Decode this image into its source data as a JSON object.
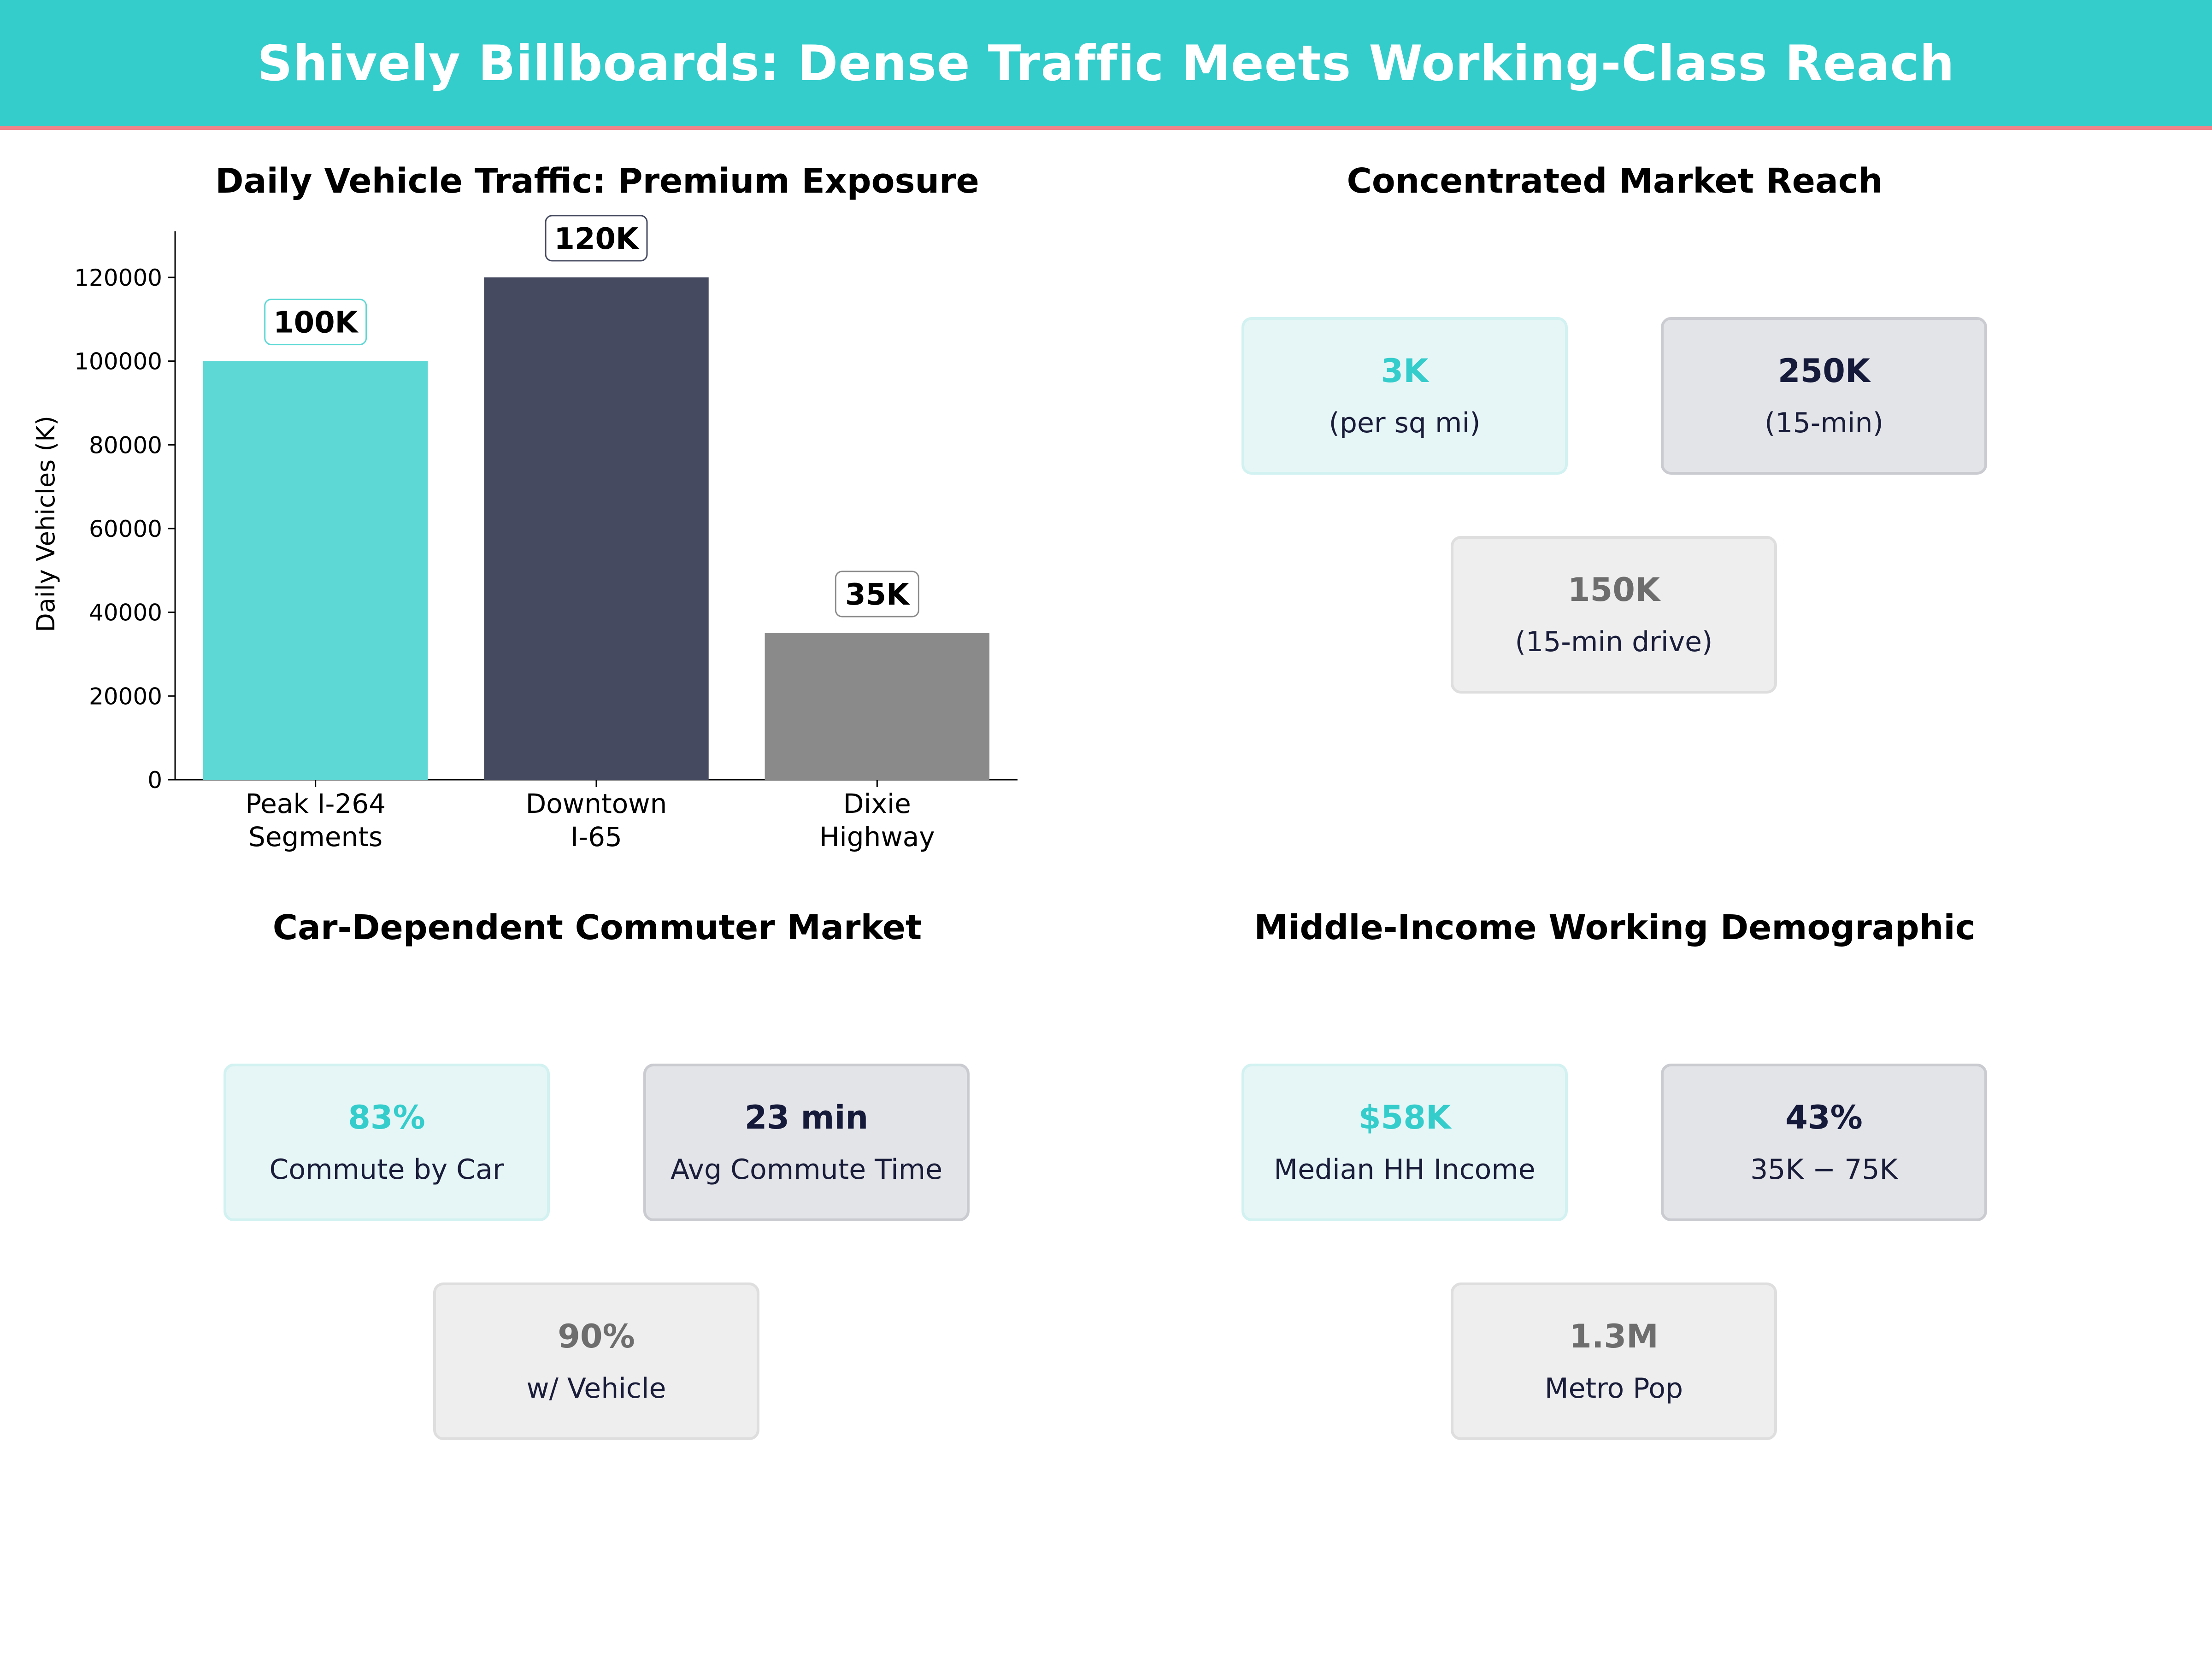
{
  "header": {
    "title": "Shively Billboards: Dense Traffic Meets Working-Class Reach"
  },
  "chart_data": {
    "type": "bar",
    "title": "Daily Vehicle Traffic: Premium Exposure",
    "xlabel": "",
    "ylabel": "Daily Vehicles (K)",
    "categories": [
      "Peak I-264 Segments",
      "Downtown I-65",
      "Dixie Highway"
    ],
    "category_lines": [
      [
        "Peak I-264",
        "Segments"
      ],
      [
        "Downtown",
        "I-65"
      ],
      [
        "Dixie",
        "Highway"
      ]
    ],
    "values": [
      100000,
      120000,
      35000
    ],
    "data_labels": [
      "100K",
      "120K",
      "35K"
    ],
    "colors": [
      "#5dd8d5",
      "#454a60",
      "#8a8a8a"
    ],
    "label_border_colors": [
      "#5dd8d5",
      "#454a60",
      "#8a8a8a"
    ],
    "ylim": [
      0,
      131000
    ],
    "yticks": [
      0,
      20000,
      40000,
      60000,
      80000,
      100000,
      120000
    ],
    "grid": false,
    "legend": "none"
  },
  "panels": {
    "reach": {
      "title": "Concentrated Market Reach",
      "cards": [
        {
          "value": "3K",
          "label": "(per sq mi)",
          "style": "teal"
        },
        {
          "value": "250K",
          "label": "(15-min)",
          "style": "navy"
        },
        {
          "value": "150K",
          "label": "(15-min drive)",
          "style": "gray"
        }
      ]
    },
    "commuter": {
      "title": "Car-Dependent Commuter Market",
      "cards": [
        {
          "value": "83%",
          "label": "Commute by Car",
          "style": "teal"
        },
        {
          "value": "23 min",
          "label": "Avg Commute Time",
          "style": "navy"
        },
        {
          "value": "90%",
          "label": "w/ Vehicle",
          "style": "gray"
        }
      ]
    },
    "demographic": {
      "title": "Middle-Income Working Demographic",
      "cards": [
        {
          "value": "$58K",
          "label": "Median HH Income",
          "style": "teal"
        },
        {
          "value": "43%",
          "label": "35K − 75K",
          "style": "navy"
        },
        {
          "value": "1.3M",
          "label": "Metro Pop",
          "style": "gray"
        }
      ]
    }
  },
  "colors": {
    "banner": "#35cccc",
    "banner_rule": "#f0828a",
    "accent_teal": "#35cccc",
    "navy": "#15193a",
    "gray": "#6d6d6d"
  }
}
